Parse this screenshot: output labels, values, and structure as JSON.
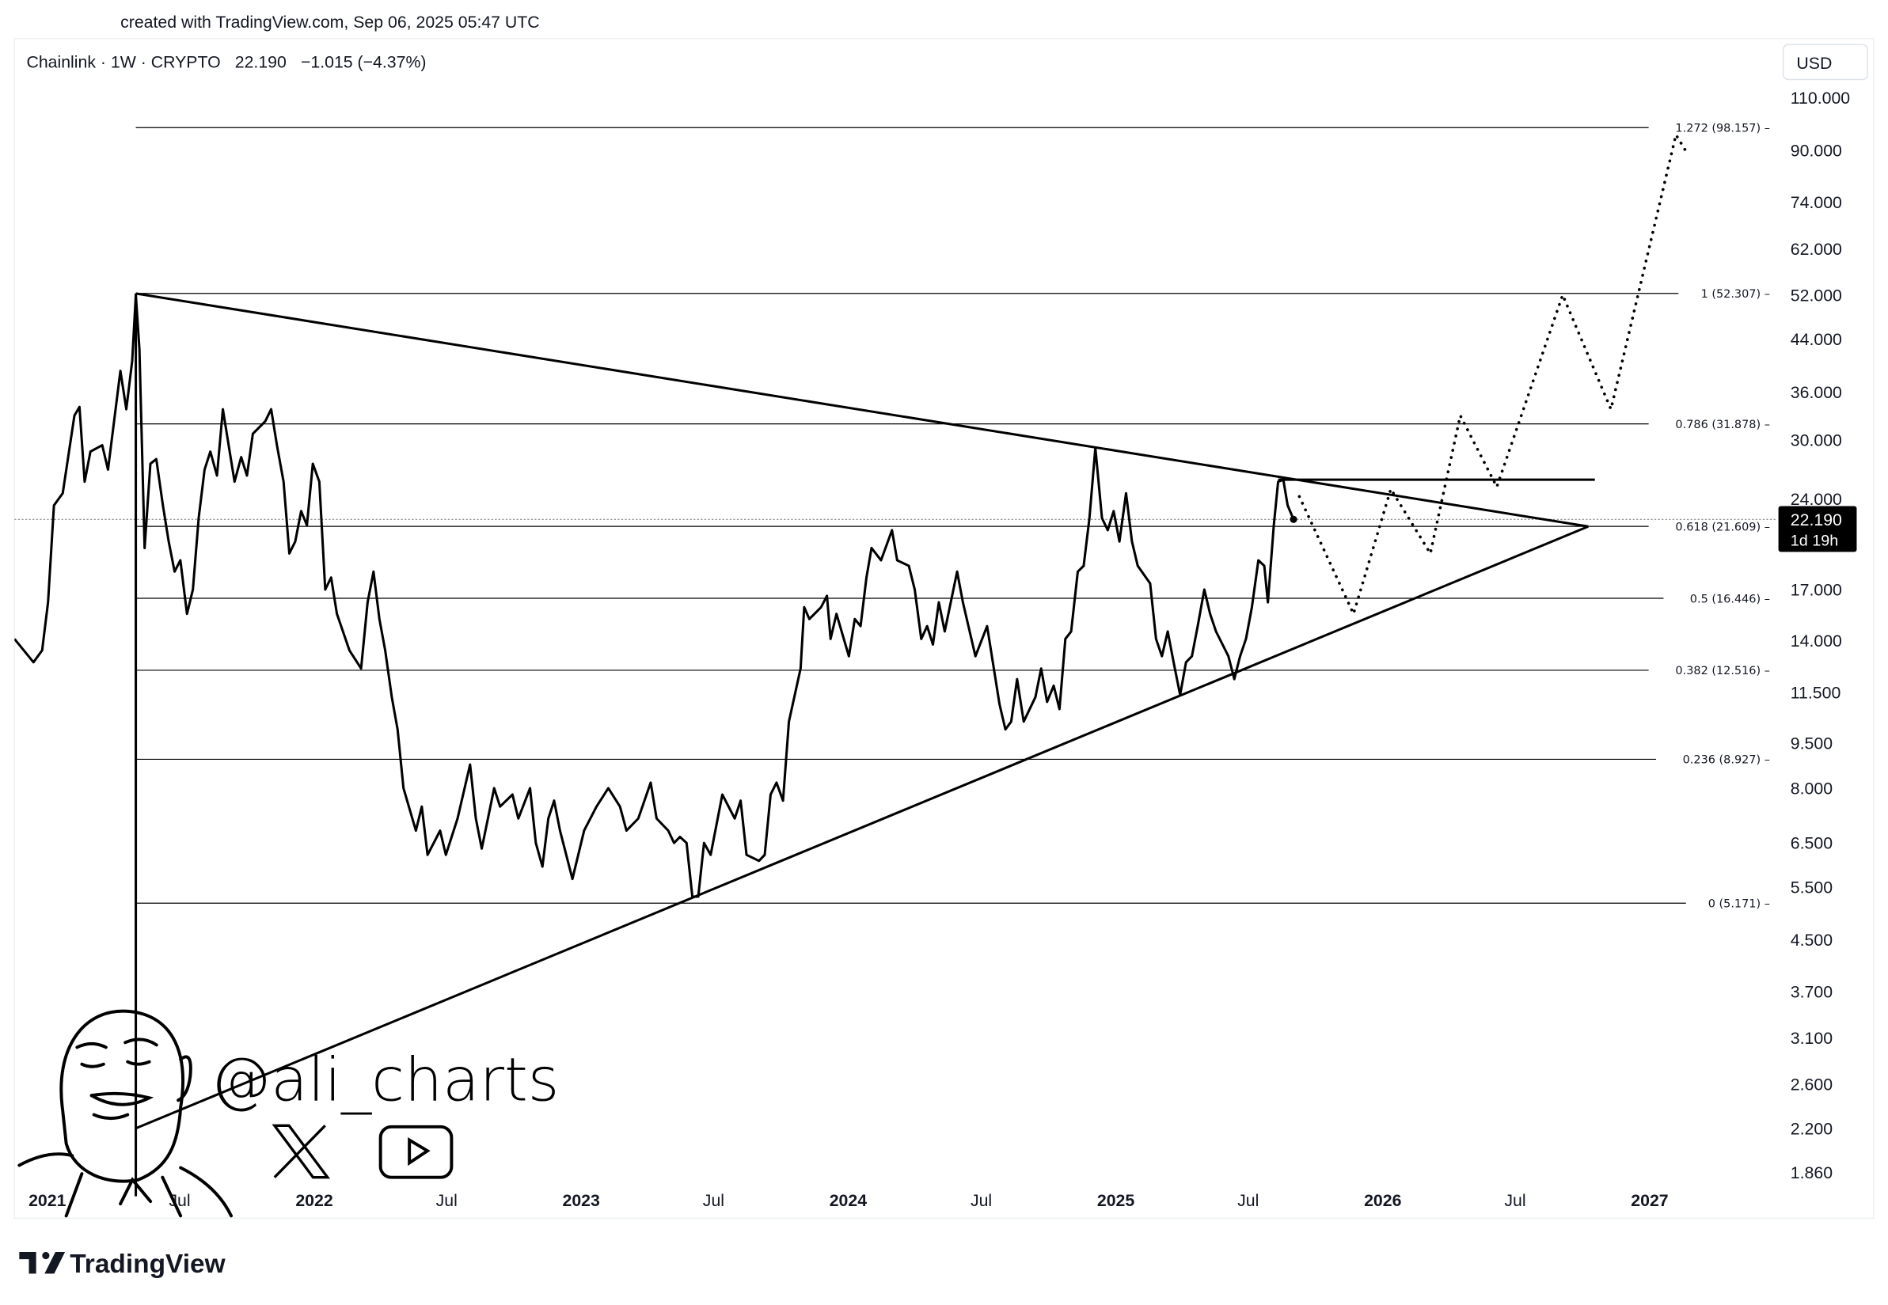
{
  "header": {
    "created_text": "created with TradingView.com, Sep 06, 2025 05:47 UTC"
  },
  "legend": {
    "symbol_line": "Chainlink · 1W · CRYPTO",
    "last": "22.190",
    "change": "−1.015 (−4.37%)"
  },
  "currency_button": "USD",
  "watermark": {
    "handle": "@ali_charts",
    "icons": [
      "x-logo-icon",
      "youtube-icon",
      "avatar-caricature"
    ]
  },
  "footer": {
    "brand": "TradingView"
  },
  "colors": {
    "line": "#000000",
    "text": "#131722",
    "grid_border": "#e0e3eb",
    "price_label_bg": "#000000"
  },
  "chart_data": {
    "type": "line",
    "title": "Chainlink · 1W · CRYPTO",
    "y_scale": "log",
    "ylim": [
      1.7,
      130
    ],
    "xlim": [
      "2020-11-16",
      "2027-03-20"
    ],
    "grid": false,
    "y_ticks": [
      "110.000",
      "90.000",
      "74.000",
      "62.000",
      "52.000",
      "44.000",
      "36.000",
      "30.000",
      "24.000",
      "17.000",
      "14.000",
      "11.500",
      "9.500",
      "8.000",
      "6.500",
      "5.500",
      "4.500",
      "3.700",
      "3.100",
      "2.600",
      "2.200",
      "1.860"
    ],
    "x_ticks": [
      {
        "label": "2021",
        "date": "2021-01-01",
        "bold": true
      },
      {
        "label": "Jul",
        "date": "2021-07-01",
        "bold": false
      },
      {
        "label": "2022",
        "date": "2022-01-01",
        "bold": true
      },
      {
        "label": "Jul",
        "date": "2022-07-01",
        "bold": false
      },
      {
        "label": "2023",
        "date": "2023-01-01",
        "bold": true
      },
      {
        "label": "Jul",
        "date": "2023-07-01",
        "bold": false
      },
      {
        "label": "2024",
        "date": "2024-01-01",
        "bold": true
      },
      {
        "label": "Jul",
        "date": "2024-07-01",
        "bold": false
      },
      {
        "label": "2025",
        "date": "2025-01-01",
        "bold": true
      },
      {
        "label": "Jul",
        "date": "2025-07-01",
        "bold": false
      },
      {
        "label": "2026",
        "date": "2026-01-01",
        "bold": true
      },
      {
        "label": "Jul",
        "date": "2026-07-01",
        "bold": false
      },
      {
        "label": "2027",
        "date": "2027-01-01",
        "bold": true
      }
    ],
    "current_price": {
      "value": 22.19,
      "label": "22.190",
      "countdown": "1d 19h",
      "date": "2025-09-01"
    },
    "series": [
      {
        "points": [
          [
            "2020-11-17",
            14.1
          ],
          [
            "2020-12-13",
            12.9
          ],
          [
            "2020-12-25",
            13.5
          ],
          [
            "2021-01-02",
            16.2
          ],
          [
            "2021-01-10",
            23.4
          ],
          [
            "2021-01-22",
            24.5
          ],
          [
            "2021-02-07",
            32.9
          ],
          [
            "2021-02-14",
            34.0
          ],
          [
            "2021-02-21",
            25.6
          ],
          [
            "2021-03-01",
            28.7
          ],
          [
            "2021-03-17",
            29.4
          ],
          [
            "2021-03-25",
            26.8
          ],
          [
            "2021-04-11",
            39.0
          ],
          [
            "2021-04-19",
            33.7
          ],
          [
            "2021-04-27",
            40.5
          ],
          [
            "2021-05-02",
            52.0
          ],
          [
            "2021-05-07",
            42.3
          ],
          [
            "2021-05-14",
            19.9
          ],
          [
            "2021-05-22",
            27.4
          ],
          [
            "2021-05-30",
            27.9
          ],
          [
            "2021-06-08",
            23.4
          ],
          [
            "2021-06-16",
            20.4
          ],
          [
            "2021-06-24",
            18.2
          ],
          [
            "2021-07-02",
            19.0
          ],
          [
            "2021-07-11",
            15.5
          ],
          [
            "2021-07-19",
            17.0
          ],
          [
            "2021-07-27",
            22.3
          ],
          [
            "2021-08-04",
            26.8
          ],
          [
            "2021-08-12",
            28.7
          ],
          [
            "2021-08-21",
            26.2
          ],
          [
            "2021-08-29",
            33.7
          ],
          [
            "2021-09-06",
            29.4
          ],
          [
            "2021-09-14",
            25.6
          ],
          [
            "2021-09-23",
            28.1
          ],
          [
            "2021-10-01",
            26.2
          ],
          [
            "2021-10-09",
            30.7
          ],
          [
            "2021-10-26",
            32.2
          ],
          [
            "2021-11-03",
            33.7
          ],
          [
            "2021-11-11",
            29.4
          ],
          [
            "2021-11-20",
            25.6
          ],
          [
            "2021-11-28",
            19.5
          ],
          [
            "2021-12-06",
            20.4
          ],
          [
            "2021-12-14",
            22.9
          ],
          [
            "2021-12-22",
            21.7
          ],
          [
            "2021-12-30",
            27.4
          ],
          [
            "2022-01-08",
            25.6
          ],
          [
            "2022-01-16",
            17.0
          ],
          [
            "2022-01-24",
            17.8
          ],
          [
            "2022-02-01",
            15.5
          ],
          [
            "2022-02-18",
            13.5
          ],
          [
            "2022-03-06",
            12.6
          ],
          [
            "2022-03-15",
            16.2
          ],
          [
            "2022-03-23",
            18.2
          ],
          [
            "2022-03-31",
            15.2
          ],
          [
            "2022-04-08",
            13.5
          ],
          [
            "2022-04-17",
            11.3
          ],
          [
            "2022-04-25",
            10.0
          ],
          [
            "2022-05-03",
            8.0
          ],
          [
            "2022-05-20",
            6.81
          ],
          [
            "2022-05-28",
            7.46
          ],
          [
            "2022-06-05",
            6.21
          ],
          [
            "2022-06-22",
            6.81
          ],
          [
            "2022-06-30",
            6.21
          ],
          [
            "2022-07-16",
            7.13
          ],
          [
            "2022-08-02",
            8.75
          ],
          [
            "2022-08-10",
            7.13
          ],
          [
            "2022-08-18",
            6.36
          ],
          [
            "2022-09-04",
            8.0
          ],
          [
            "2022-09-12",
            7.46
          ],
          [
            "2022-09-29",
            7.81
          ],
          [
            "2022-10-07",
            7.13
          ],
          [
            "2022-10-23",
            8.0
          ],
          [
            "2022-10-31",
            6.5
          ],
          [
            "2022-11-09",
            5.94
          ],
          [
            "2022-11-17",
            7.13
          ],
          [
            "2022-11-25",
            7.63
          ],
          [
            "2022-12-03",
            6.81
          ],
          [
            "2022-12-20",
            5.67
          ],
          [
            "2023-01-05",
            6.81
          ],
          [
            "2023-01-22",
            7.46
          ],
          [
            "2023-02-07",
            8.0
          ],
          [
            "2023-02-23",
            7.46
          ],
          [
            "2023-03-04",
            6.81
          ],
          [
            "2023-03-20",
            7.13
          ],
          [
            "2023-04-06",
            8.17
          ],
          [
            "2023-04-14",
            7.13
          ],
          [
            "2023-04-30",
            6.81
          ],
          [
            "2023-05-08",
            6.5
          ],
          [
            "2023-05-16",
            6.65
          ],
          [
            "2023-05-25",
            6.5
          ],
          [
            "2023-06-02",
            5.3
          ],
          [
            "2023-06-10",
            5.3
          ],
          [
            "2023-06-18",
            6.5
          ],
          [
            "2023-06-27",
            6.21
          ],
          [
            "2023-07-13",
            7.81
          ],
          [
            "2023-07-30",
            7.13
          ],
          [
            "2023-08-07",
            7.63
          ],
          [
            "2023-08-15",
            6.21
          ],
          [
            "2023-09-01",
            6.07
          ],
          [
            "2023-09-09",
            6.21
          ],
          [
            "2023-09-17",
            7.81
          ],
          [
            "2023-09-25",
            8.17
          ],
          [
            "2023-10-04",
            7.63
          ],
          [
            "2023-10-12",
            10.3
          ],
          [
            "2023-10-28",
            12.6
          ],
          [
            "2023-11-02",
            15.9
          ],
          [
            "2023-11-09",
            15.2
          ],
          [
            "2023-11-25",
            15.9
          ],
          [
            "2023-12-03",
            16.6
          ],
          [
            "2023-12-08",
            14.1
          ],
          [
            "2023-12-16",
            15.5
          ],
          [
            "2024-01-02",
            13.2
          ],
          [
            "2024-01-10",
            15.2
          ],
          [
            "2024-01-18",
            14.8
          ],
          [
            "2024-01-26",
            17.8
          ],
          [
            "2024-02-02",
            19.9
          ],
          [
            "2024-02-15",
            19.0
          ],
          [
            "2024-03-01",
            21.3
          ],
          [
            "2024-03-08",
            19.0
          ],
          [
            "2024-03-24",
            18.6
          ],
          [
            "2024-04-01",
            17.0
          ],
          [
            "2024-04-10",
            14.1
          ],
          [
            "2024-04-18",
            14.8
          ],
          [
            "2024-04-26",
            13.8
          ],
          [
            "2024-05-04",
            16.2
          ],
          [
            "2024-05-12",
            14.5
          ],
          [
            "2024-05-29",
            18.2
          ],
          [
            "2024-06-06",
            16.2
          ],
          [
            "2024-06-23",
            13.2
          ],
          [
            "2024-07-09",
            14.8
          ],
          [
            "2024-07-26",
            11.0
          ],
          [
            "2024-08-03",
            10.0
          ],
          [
            "2024-08-11",
            10.3
          ],
          [
            "2024-08-19",
            12.1
          ],
          [
            "2024-08-28",
            10.3
          ],
          [
            "2024-09-13",
            11.3
          ],
          [
            "2024-09-21",
            12.6
          ],
          [
            "2024-09-29",
            11.1
          ],
          [
            "2024-10-08",
            11.8
          ],
          [
            "2024-10-16",
            10.8
          ],
          [
            "2024-10-24",
            14.1
          ],
          [
            "2024-11-01",
            14.5
          ],
          [
            "2024-11-10",
            18.2
          ],
          [
            "2024-11-18",
            18.6
          ],
          [
            "2024-11-26",
            22.3
          ],
          [
            "2024-12-04",
            29.1
          ],
          [
            "2024-12-13",
            22.3
          ],
          [
            "2024-12-21",
            21.3
          ],
          [
            "2024-12-29",
            22.9
          ],
          [
            "2025-01-06",
            20.4
          ],
          [
            "2025-01-15",
            24.5
          ],
          [
            "2025-01-23",
            20.4
          ],
          [
            "2025-01-31",
            18.6
          ],
          [
            "2025-02-17",
            17.4
          ],
          [
            "2025-02-25",
            14.1
          ],
          [
            "2025-03-05",
            13.2
          ],
          [
            "2025-03-13",
            14.5
          ],
          [
            "2025-03-21",
            12.9
          ],
          [
            "2025-03-30",
            11.4
          ],
          [
            "2025-04-07",
            12.9
          ],
          [
            "2025-04-15",
            13.2
          ],
          [
            "2025-04-23",
            14.8
          ],
          [
            "2025-05-02",
            17.0
          ],
          [
            "2025-05-10",
            15.5
          ],
          [
            "2025-05-18",
            14.5
          ],
          [
            "2025-06-04",
            13.2
          ],
          [
            "2025-06-12",
            12.1
          ],
          [
            "2025-06-20",
            13.2
          ],
          [
            "2025-06-28",
            14.1
          ],
          [
            "2025-07-06",
            15.9
          ],
          [
            "2025-07-15",
            19.0
          ],
          [
            "2025-07-23",
            18.6
          ],
          [
            "2025-07-28",
            16.2
          ],
          [
            "2025-08-05",
            21.7
          ],
          [
            "2025-08-11",
            25.6
          ],
          [
            "2025-08-18",
            25.8
          ],
          [
            "2025-08-24",
            23.4
          ],
          [
            "2025-09-01",
            22.19
          ]
        ]
      }
    ],
    "fib_levels": [
      {
        "label": "1.272 (98.157)",
        "value": 98.157
      },
      {
        "label": "1 (52.307)",
        "value": 52.307
      },
      {
        "label": "0.786 (31.878)",
        "value": 31.878
      },
      {
        "label": "0.618 (21.609)",
        "value": 21.609
      },
      {
        "label": "0.5 (16.446)",
        "value": 16.446
      },
      {
        "label": "0.382 (12.516)",
        "value": 12.516
      },
      {
        "label": "0.236 (8.927)",
        "value": 8.927
      },
      {
        "label": "0 (5.171)",
        "value": 5.171
      }
    ],
    "fib_start_date": "2021-05-02",
    "trendlines": [
      {
        "name": "upper-trendline",
        "from": [
          "2021-05-02",
          52.3
        ],
        "to": [
          "2026-10-09",
          21.6
        ]
      },
      {
        "name": "lower-trendline",
        "from": [
          "2021-05-02",
          2.2
        ],
        "to": [
          "2026-10-09",
          21.6
        ]
      },
      {
        "name": "resistance-line",
        "from": [
          "2025-08-11",
          25.8
        ],
        "to": [
          "2026-10-18",
          25.8
        ]
      }
    ],
    "vertical_line": {
      "date": "2021-05-02",
      "from": 52.3,
      "to": 1.7
    },
    "projection": [
      [
        "2025-09-09",
        24.2
      ],
      [
        "2025-11-22",
        15.5
      ],
      [
        "2026-01-12",
        24.9
      ],
      [
        "2026-03-07",
        19.5
      ],
      [
        "2026-04-17",
        32.9
      ],
      [
        "2026-06-06",
        25.1
      ],
      [
        "2026-09-04",
        52.0
      ],
      [
        "2026-11-09",
        33.7
      ],
      [
        "2027-02-06",
        95.5
      ],
      [
        "2027-02-19",
        90.0
      ]
    ]
  }
}
